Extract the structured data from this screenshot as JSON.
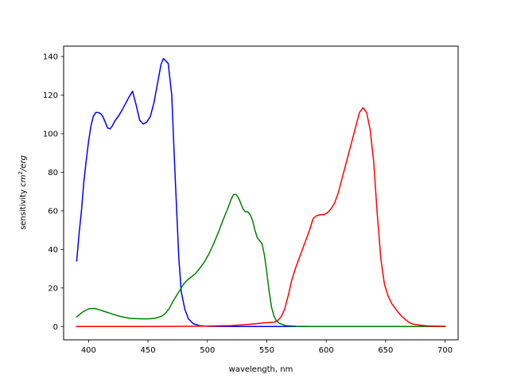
{
  "chart_data": {
    "type": "line",
    "title": "",
    "xlabel": "wavelength, nm",
    "ylabel_prefix": "sensitivity ",
    "ylabel_unit_base": "cm",
    "ylabel_unit_exp": "2",
    "ylabel_unit_tail": "/erg",
    "xlim": [
      379,
      711
    ],
    "ylim": [
      -6.9,
      145.4
    ],
    "xticks": [
      400,
      450,
      500,
      550,
      600,
      650,
      700
    ],
    "yticks": [
      0,
      20,
      40,
      60,
      80,
      100,
      120,
      140
    ],
    "grid": false,
    "legend": "none",
    "series": [
      {
        "color": "#0000ff",
        "points": [
          [
            390,
            34
          ],
          [
            392,
            48
          ],
          [
            394,
            60
          ],
          [
            396,
            75
          ],
          [
            398,
            86
          ],
          [
            400,
            96
          ],
          [
            402,
            104
          ],
          [
            404,
            109
          ],
          [
            406,
            111
          ],
          [
            408,
            111
          ],
          [
            410,
            110.5
          ],
          [
            412,
            109
          ],
          [
            414,
            106
          ],
          [
            416,
            103
          ],
          [
            418,
            102.5
          ],
          [
            420,
            104
          ],
          [
            422,
            106.5
          ],
          [
            425,
            109
          ],
          [
            428,
            112
          ],
          [
            431,
            115.5
          ],
          [
            434,
            119
          ],
          [
            437,
            122
          ],
          [
            440,
            115
          ],
          [
            443,
            107
          ],
          [
            446,
            105
          ],
          [
            449,
            106
          ],
          [
            452,
            109
          ],
          [
            455,
            116
          ],
          [
            458,
            126
          ],
          [
            461,
            136
          ],
          [
            463,
            139
          ],
          [
            467,
            136.5
          ],
          [
            470,
            120
          ],
          [
            472,
            90
          ],
          [
            474,
            62
          ],
          [
            476,
            35
          ],
          [
            478,
            18
          ],
          [
            481,
            9
          ],
          [
            484,
            4
          ],
          [
            488,
            1.5
          ],
          [
            493,
            0.5
          ],
          [
            500,
            0.1
          ],
          [
            520,
            0
          ],
          [
            560,
            0
          ],
          [
            600,
            0
          ],
          [
            650,
            0
          ],
          [
            700,
            0
          ]
        ]
      },
      {
        "color": "#008000",
        "points": [
          [
            390,
            5
          ],
          [
            395,
            7.5
          ],
          [
            400,
            9.2
          ],
          [
            405,
            9.4
          ],
          [
            410,
            8.5
          ],
          [
            415,
            7.5
          ],
          [
            420,
            6.5
          ],
          [
            425,
            5.5
          ],
          [
            430,
            4.8
          ],
          [
            435,
            4.2
          ],
          [
            440,
            4.1
          ],
          [
            445,
            4
          ],
          [
            450,
            4
          ],
          [
            455,
            4.2
          ],
          [
            458,
            4.6
          ],
          [
            462,
            5.5
          ],
          [
            465,
            7
          ],
          [
            468,
            9.5
          ],
          [
            471,
            13
          ],
          [
            474,
            16
          ],
          [
            477,
            19
          ],
          [
            480,
            22
          ],
          [
            483,
            24
          ],
          [
            486,
            25.5
          ],
          [
            490,
            27.5
          ],
          [
            494,
            30.5
          ],
          [
            498,
            34
          ],
          [
            502,
            38.5
          ],
          [
            506,
            44
          ],
          [
            510,
            50
          ],
          [
            513,
            55
          ],
          [
            516,
            59.5
          ],
          [
            518,
            62.5
          ],
          [
            520,
            66
          ],
          [
            522,
            68.5
          ],
          [
            524,
            68.5
          ],
          [
            526,
            67
          ],
          [
            528,
            64
          ],
          [
            530,
            61
          ],
          [
            532,
            59.5
          ],
          [
            534,
            59.5
          ],
          [
            536,
            58
          ],
          [
            538,
            55
          ],
          [
            540,
            50
          ],
          [
            542,
            46
          ],
          [
            544,
            44.5
          ],
          [
            546,
            43
          ],
          [
            548,
            37
          ],
          [
            550,
            28
          ],
          [
            552,
            18
          ],
          [
            554,
            10
          ],
          [
            556,
            5.5
          ],
          [
            558,
            3
          ],
          [
            561,
            1.5
          ],
          [
            566,
            0.5
          ],
          [
            575,
            0.1
          ],
          [
            590,
            0
          ],
          [
            600,
            0
          ],
          [
            650,
            0
          ],
          [
            700,
            0
          ]
        ]
      },
      {
        "color": "#ff0000",
        "points": [
          [
            390,
            0
          ],
          [
            450,
            0
          ],
          [
            500,
            0.2
          ],
          [
            520,
            0.5
          ],
          [
            530,
            0.9
          ],
          [
            540,
            1.4
          ],
          [
            546,
            1.8
          ],
          [
            550,
            2
          ],
          [
            556,
            2.2
          ],
          [
            559,
            3
          ],
          [
            562,
            5
          ],
          [
            565,
            9
          ],
          [
            568,
            16
          ],
          [
            571,
            24
          ],
          [
            574,
            30
          ],
          [
            577,
            35
          ],
          [
            580,
            40
          ],
          [
            583,
            45
          ],
          [
            586,
            50
          ],
          [
            589,
            56
          ],
          [
            592,
            57.5
          ],
          [
            595,
            58
          ],
          [
            598,
            58
          ],
          [
            601,
            59
          ],
          [
            604,
            61
          ],
          [
            607,
            64
          ],
          [
            610,
            69
          ],
          [
            613,
            76
          ],
          [
            616,
            83
          ],
          [
            619,
            90
          ],
          [
            622,
            97
          ],
          [
            625,
            104
          ],
          [
            628,
            111
          ],
          [
            631,
            113.5
          ],
          [
            634,
            111
          ],
          [
            637,
            102
          ],
          [
            640,
            85
          ],
          [
            643,
            58
          ],
          [
            646,
            35
          ],
          [
            649,
            22
          ],
          [
            652,
            16
          ],
          [
            655,
            12
          ],
          [
            658,
            9.5
          ],
          [
            661,
            7
          ],
          [
            664,
            5
          ],
          [
            667,
            3.5
          ],
          [
            670,
            2
          ],
          [
            673,
            1.2
          ],
          [
            676,
            1
          ],
          [
            679,
            0.7
          ],
          [
            682,
            0.5
          ],
          [
            685,
            0.3
          ],
          [
            690,
            0.2
          ],
          [
            700,
            0.1
          ]
        ]
      }
    ]
  }
}
